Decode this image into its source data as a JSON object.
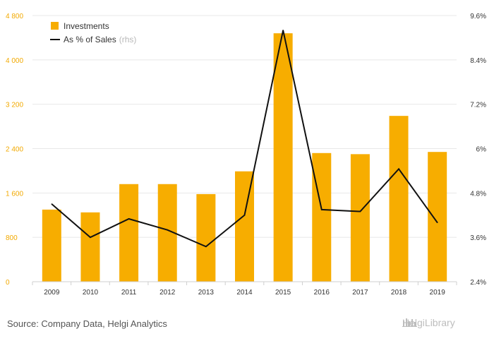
{
  "chart_data": {
    "type": "bar+line",
    "categories": [
      "2009",
      "2010",
      "2011",
      "2012",
      "2013",
      "2014",
      "2015",
      "2016",
      "2017",
      "2018",
      "2019"
    ],
    "series": [
      {
        "name": "Investments",
        "type": "bar",
        "axis": "left",
        "values": [
          1300,
          1250,
          1760,
          1760,
          1580,
          1990,
          4480,
          2320,
          2300,
          2990,
          2340
        ]
      },
      {
        "name": "As % of Sales",
        "name_suffix": "(rhs)",
        "type": "line",
        "axis": "right",
        "values": [
          4.5,
          3.6,
          4.1,
          3.8,
          3.35,
          4.2,
          9.2,
          4.35,
          4.3,
          5.45,
          4.0
        ]
      }
    ],
    "y_left": {
      "min": 0,
      "max": 4800,
      "ticks": [
        "0",
        "800",
        "1 600",
        "2 400",
        "3 200",
        "4 000",
        "4 800"
      ],
      "tick_values": [
        0,
        800,
        1600,
        2400,
        3200,
        4000,
        4800
      ]
    },
    "y_right": {
      "min": 2.4,
      "max": 9.6,
      "ticks": [
        "2.4%",
        "3.6%",
        "4.8%",
        "6%",
        "7.2%",
        "8.4%",
        "9.6%"
      ],
      "tick_values": [
        2.4,
        3.6,
        4.8,
        6.0,
        7.2,
        8.4,
        9.6
      ]
    },
    "grid": true,
    "legend": "top-left",
    "colors": {
      "bar": "#f7ad00",
      "line": "#111111",
      "left_axis_text": "#f2a900",
      "grid": "#e8e8e8"
    }
  },
  "footer": {
    "source": "Source: Company Data, Helgi Analytics",
    "logo_text": "HelgiLibrary"
  }
}
